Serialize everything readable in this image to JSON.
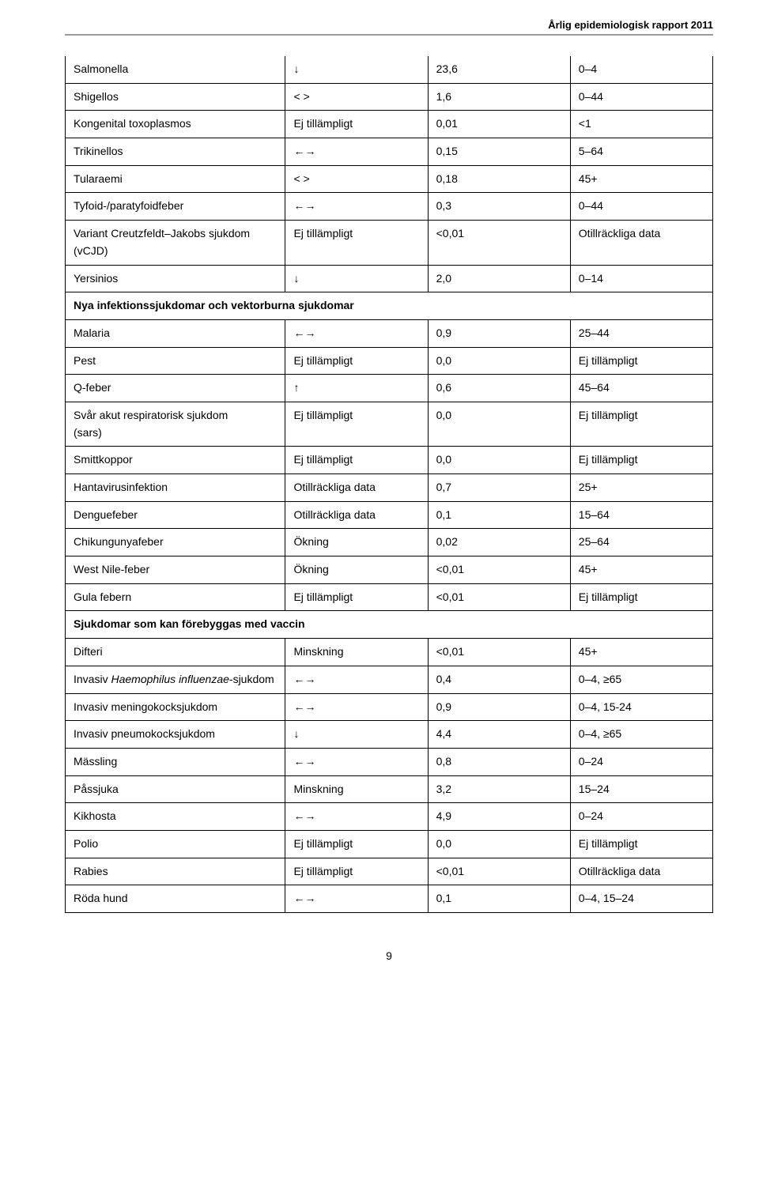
{
  "header": "Årlig epidemiologisk rapport 2011",
  "page_number": "9",
  "arrows": {
    "down": "↓",
    "up": "↑",
    "leftright": "←→",
    "ltgt": "< >"
  },
  "sections": [
    {
      "title": null,
      "rows": [
        {
          "name": "Salmonella",
          "trend_key": "down",
          "trend_text": null,
          "val": "23,6",
          "age": "0–4"
        },
        {
          "name": "Shigellos",
          "trend_key": "ltgt",
          "trend_text": null,
          "val": "1,6",
          "age": "0–44"
        },
        {
          "name": "Kongenital toxoplasmos",
          "trend_key": null,
          "trend_text": "Ej tillämpligt",
          "val": "0,01",
          "age": "<1"
        },
        {
          "name": "Trikinellos",
          "trend_key": "leftright",
          "trend_text": null,
          "val": "0,15",
          "age": "5–64"
        },
        {
          "name": "Tularaemi",
          "trend_key": "ltgt",
          "trend_text": null,
          "val": "0,18",
          "age": "45+"
        },
        {
          "name": "Tyfoid-/paratyfoidfeber",
          "trend_key": "leftright",
          "trend_text": null,
          "val": "0,3",
          "age": "0–44"
        },
        {
          "name": "Variant Creutzfeldt–Jakobs sjukdom (vCJD)",
          "trend_key": null,
          "trend_text": "Ej tillämpligt",
          "val": "<0,01",
          "age": "Otillräckliga data"
        },
        {
          "name": "Yersinios",
          "trend_key": "down",
          "trend_text": null,
          "val": "2,0",
          "age": "0–14"
        }
      ]
    },
    {
      "title": "Nya infektionssjukdomar och vektorburna sjukdomar",
      "rows": [
        {
          "name": "Malaria",
          "trend_key": "leftright",
          "trend_text": null,
          "val": "0,9",
          "age": "25–44"
        },
        {
          "name": "Pest",
          "trend_key": null,
          "trend_text": "Ej tillämpligt",
          "val": "0,0",
          "age": "Ej tillämpligt"
        },
        {
          "name": "Q-feber",
          "trend_key": "up",
          "trend_text": null,
          "val": "0,6",
          "age": "45–64"
        },
        {
          "name": "Svår akut respiratorisk sjukdom\n(sars)",
          "trend_key": null,
          "trend_text": "Ej tillämpligt",
          "val": "0,0",
          "age": "Ej tillämpligt"
        },
        {
          "name": "Smittkoppor",
          "trend_key": null,
          "trend_text": "Ej tillämpligt",
          "val": "0,0",
          "age": "Ej tillämpligt"
        },
        {
          "name": "Hantavirusinfektion",
          "trend_key": null,
          "trend_text": "Otillräckliga data",
          "val": "0,7",
          "age": "25+"
        },
        {
          "name": "Denguefeber",
          "trend_key": null,
          "trend_text": "Otillräckliga data",
          "val": "0,1",
          "age": "15–64"
        },
        {
          "name": "Chikungunyafeber",
          "trend_key": null,
          "trend_text": "Ökning",
          "val": "0,02",
          "age": "25–64"
        },
        {
          "name": "West Nile-feber",
          "trend_key": null,
          "trend_text": "Ökning",
          "val": "<0,01",
          "age": "45+"
        },
        {
          "name": "Gula febern",
          "trend_key": null,
          "trend_text": "Ej tillämpligt",
          "val": "<0,01",
          "age": "Ej tillämpligt"
        }
      ]
    },
    {
      "title": "Sjukdomar som kan förebyggas med vaccin",
      "rows": [
        {
          "name": "Difteri",
          "trend_key": null,
          "trend_text": "Minskning",
          "val": "<0,01",
          "age": "45+"
        },
        {
          "name_html": "Invasiv <span class=\"italic\">Haemophilus influenzae</span>-sjukdom",
          "trend_key": "leftright",
          "trend_text": null,
          "val": "0,4",
          "age": "0–4, ≥65"
        },
        {
          "name": "Invasiv meningokocksjukdom",
          "trend_key": "leftright",
          "trend_text": null,
          "val": "0,9",
          "age": "0–4, 15-24"
        },
        {
          "name": "Invasiv pneumokocksjukdom",
          "trend_key": "down",
          "trend_text": null,
          "val": "4,4",
          "age": "0–4, ≥65"
        },
        {
          "name": "Mässling",
          "trend_key": "leftright",
          "trend_text": null,
          "val": "0,8",
          "age": "0–24"
        },
        {
          "name": "Påssjuka",
          "trend_key": null,
          "trend_text": "Minskning",
          "val": "3,2",
          "age": "15–24"
        },
        {
          "name": "Kikhosta",
          "trend_key": "leftright",
          "trend_text": null,
          "val": "4,9",
          "age": "0–24"
        },
        {
          "name": "Polio",
          "trend_key": null,
          "trend_text": "Ej tillämpligt",
          "val": "0,0",
          "age": "Ej tillämpligt"
        },
        {
          "name": "Rabies",
          "trend_key": null,
          "trend_text": "Ej tillämpligt",
          "val": "<0,01",
          "age": "Otillräckliga data"
        },
        {
          "name": "Röda hund",
          "trend_key": "leftright",
          "trend_text": null,
          "val": "0,1",
          "age": "0–4, 15–24"
        }
      ]
    }
  ]
}
